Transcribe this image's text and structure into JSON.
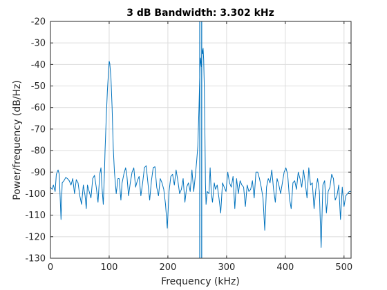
{
  "chart_data": {
    "type": "line",
    "title": "3 dB Bandwidth: 3.302 kHz",
    "xlabel": "Frequency (kHz)",
    "ylabel": "Power/frequency (dB/Hz)",
    "xlim": [
      0,
      512
    ],
    "ylim": [
      -130,
      -20
    ],
    "xticks": [
      0,
      100,
      200,
      300,
      400,
      500
    ],
    "yticks": [
      -20,
      -30,
      -40,
      -50,
      -60,
      -70,
      -80,
      -90,
      -100,
      -110,
      -120,
      -130
    ],
    "grid": true,
    "color": "#0072BD",
    "series": [
      {
        "points": [
          [
            0,
            -97
          ],
          [
            3,
            -98
          ],
          [
            5,
            -96
          ],
          [
            8,
            -99
          ],
          [
            10,
            -91
          ],
          [
            13,
            -89
          ],
          [
            15,
            -91
          ],
          [
            18,
            -112
          ],
          [
            20,
            -95
          ],
          [
            23,
            -94
          ],
          [
            26,
            -92.5
          ],
          [
            29,
            -93
          ],
          [
            32,
            -94
          ],
          [
            35,
            -96
          ],
          [
            38,
            -93
          ],
          [
            41,
            -100
          ],
          [
            44,
            -93.5
          ],
          [
            47,
            -95
          ],
          [
            50,
            -101
          ],
          [
            53,
            -105
          ],
          [
            56,
            -96
          ],
          [
            59,
            -101
          ],
          [
            61,
            -107
          ],
          [
            63,
            -96
          ],
          [
            66,
            -99
          ],
          [
            69,
            -102
          ],
          [
            72,
            -93
          ],
          [
            75,
            -91.5
          ],
          [
            78,
            -97
          ],
          [
            81,
            -104
          ],
          [
            84,
            -91
          ],
          [
            86,
            -88
          ],
          [
            88,
            -98
          ],
          [
            90,
            -105
          ],
          [
            92,
            -90
          ],
          [
            93,
            -80
          ],
          [
            95,
            -65
          ],
          [
            97,
            -52
          ],
          [
            99,
            -43
          ],
          [
            100,
            -38.5
          ],
          [
            101,
            -39.5
          ],
          [
            103,
            -46
          ],
          [
            105,
            -60
          ],
          [
            107,
            -79
          ],
          [
            109,
            -90
          ],
          [
            112,
            -100
          ],
          [
            115,
            -93
          ],
          [
            117,
            -93
          ],
          [
            120,
            -103
          ],
          [
            122,
            -95
          ],
          [
            125,
            -91
          ],
          [
            128,
            -88
          ],
          [
            130,
            -91
          ],
          [
            133,
            -101
          ],
          [
            136,
            -95
          ],
          [
            139,
            -90
          ],
          [
            142,
            -88
          ],
          [
            145,
            -97
          ],
          [
            148,
            -94
          ],
          [
            151,
            -92
          ],
          [
            154,
            -101
          ],
          [
            157,
            -95
          ],
          [
            160,
            -88
          ],
          [
            163,
            -87
          ],
          [
            166,
            -95
          ],
          [
            169,
            -103
          ],
          [
            172,
            -94
          ],
          [
            175,
            -88
          ],
          [
            178,
            -87.5
          ],
          [
            181,
            -97
          ],
          [
            184,
            -101
          ],
          [
            187,
            -93
          ],
          [
            190,
            -95
          ],
          [
            193,
            -98
          ],
          [
            196,
            -105
          ],
          [
            199,
            -116
          ],
          [
            202,
            -99
          ],
          [
            205,
            -92
          ],
          [
            208,
            -91
          ],
          [
            211,
            -96
          ],
          [
            214,
            -89
          ],
          [
            217,
            -94
          ],
          [
            220,
            -100
          ],
          [
            223,
            -98
          ],
          [
            226,
            -93
          ],
          [
            229,
            -104
          ],
          [
            232,
            -97
          ],
          [
            235,
            -95
          ],
          [
            238,
            -99
          ],
          [
            241,
            -89
          ],
          [
            244,
            -99
          ],
          [
            247,
            -91
          ],
          [
            249,
            -85
          ],
          [
            251,
            -78
          ],
          [
            253,
            -60
          ],
          [
            254.5,
            -43
          ],
          [
            255.5,
            -37
          ],
          [
            257,
            -41
          ],
          [
            258,
            -33
          ],
          [
            259,
            -35
          ],
          [
            260,
            -32.5
          ],
          [
            261,
            -38
          ],
          [
            262,
            -50
          ],
          [
            263,
            -70
          ],
          [
            264,
            -95
          ],
          [
            265,
            -105
          ],
          [
            267,
            -99
          ],
          [
            270,
            -100
          ],
          [
            272,
            -88
          ],
          [
            274,
            -100
          ],
          [
            276,
            -104
          ],
          [
            279,
            -95
          ],
          [
            281,
            -98
          ],
          [
            284,
            -96
          ],
          [
            287,
            -102
          ],
          [
            290,
            -109
          ],
          [
            293,
            -95
          ],
          [
            296,
            -97
          ],
          [
            299,
            -99
          ],
          [
            302,
            -90
          ],
          [
            305,
            -95
          ],
          [
            308,
            -97
          ],
          [
            311,
            -92
          ],
          [
            314,
            -107
          ],
          [
            317,
            -93
          ],
          [
            320,
            -100
          ],
          [
            323,
            -94
          ],
          [
            326,
            -96
          ],
          [
            329,
            -97
          ],
          [
            332,
            -106
          ],
          [
            335,
            -96
          ],
          [
            338,
            -99
          ],
          [
            341,
            -98
          ],
          [
            344,
            -94
          ],
          [
            347,
            -102
          ],
          [
            350,
            -90
          ],
          [
            353,
            -90
          ],
          [
            356,
            -93
          ],
          [
            359,
            -97
          ],
          [
            362,
            -102
          ],
          [
            365,
            -117
          ],
          [
            368,
            -97
          ],
          [
            371,
            -93
          ],
          [
            374,
            -95
          ],
          [
            377,
            -89
          ],
          [
            380,
            -98
          ],
          [
            383,
            -104
          ],
          [
            386,
            -93
          ],
          [
            389,
            -96
          ],
          [
            392,
            -100
          ],
          [
            395,
            -95
          ],
          [
            398,
            -90
          ],
          [
            401,
            -88
          ],
          [
            404,
            -91
          ],
          [
            407,
            -102
          ],
          [
            410,
            -107
          ],
          [
            413,
            -95
          ],
          [
            416,
            -94
          ],
          [
            419,
            -98
          ],
          [
            422,
            -90
          ],
          [
            425,
            -93
          ],
          [
            428,
            -97
          ],
          [
            431,
            -89
          ],
          [
            434,
            -95
          ],
          [
            437,
            -102
          ],
          [
            440,
            -88
          ],
          [
            443,
            -96
          ],
          [
            446,
            -95
          ],
          [
            449,
            -107
          ],
          [
            452,
            -98
          ],
          [
            455,
            -93
          ],
          [
            458,
            -99
          ],
          [
            461,
            -125
          ],
          [
            464,
            -96
          ],
          [
            467,
            -94
          ],
          [
            470,
            -109
          ],
          [
            473,
            -99
          ],
          [
            476,
            -97
          ],
          [
            479,
            -91
          ],
          [
            482,
            -93
          ],
          [
            485,
            -103
          ],
          [
            488,
            -101
          ],
          [
            491,
            -96
          ],
          [
            494,
            -112
          ],
          [
            497,
            -97
          ],
          [
            500,
            -106
          ],
          [
            503,
            -101
          ],
          [
            506,
            -100
          ],
          [
            509,
            -99
          ],
          [
            512,
            -99
          ]
        ]
      }
    ],
    "bandwidth_markers_khz": [
      254.3,
      257.6
    ]
  }
}
